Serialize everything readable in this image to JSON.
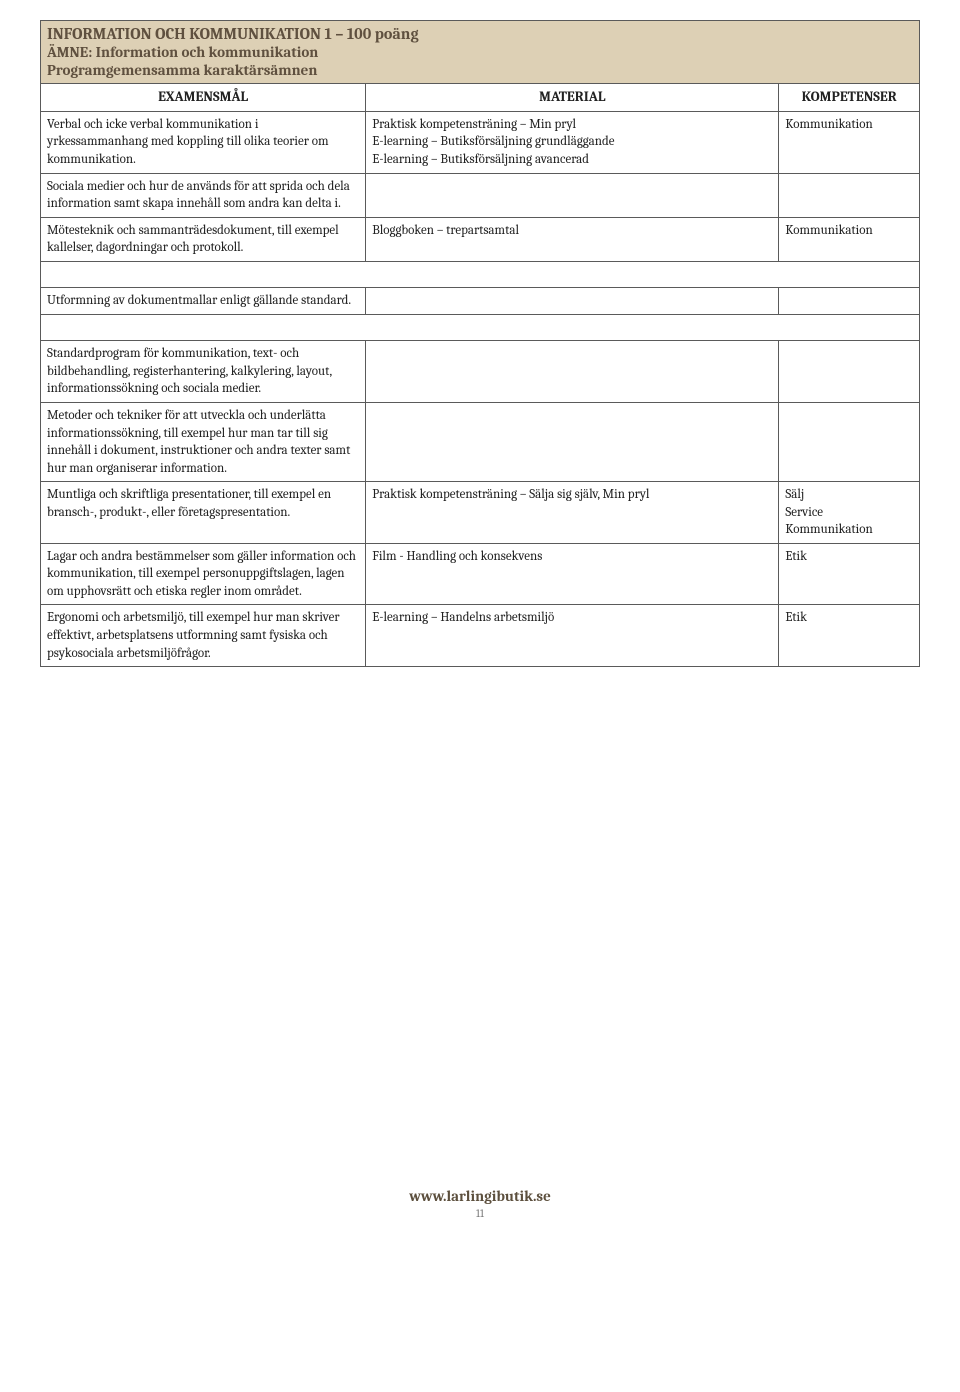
{
  "header": {
    "course_title": "INFORMATION OCH KOMMUNIKATION 1 – 100 poäng",
    "subject_line": "ÄMNE: Information och kommunikation",
    "programme_line": "Programgemensamma karaktärsämnen"
  },
  "table": {
    "columns": [
      "EXAMENSMÅL",
      "MATERIAL",
      "KOMPETENSER"
    ],
    "rows": [
      {
        "goal": "Verbal och icke verbal kommunikation i yrkessammanhang med koppling till olika teorier om kommunikation.",
        "material": "Praktisk kompetensträning – Min pryl\nE-learning – Butiksförsäljning grundläggande\nE-learning – Butiksförsäljning avancerad",
        "competence": "Kommunikation"
      },
      {
        "goal": "Sociala medier och hur de används för att sprida och dela information samt skapa innehåll som andra kan delta i.",
        "material": "",
        "competence": ""
      },
      {
        "goal": "Mötesteknik och sammanträdesdokument, till exempel kallelser, dagordningar och protokoll.",
        "material": "Bloggboken – trepartsamtal",
        "competence": "Kommunikation"
      },
      {
        "goal": "Utformning av dokumentmallar enligt gällande standard.",
        "material": "",
        "competence": ""
      },
      {
        "goal": "Standardprogram för kommunikation, text- och bildbehandling, registerhantering, kalkylering, layout, informationssökning och sociala medier.",
        "material": "",
        "competence": ""
      },
      {
        "goal": "Metoder och tekniker för att utveckla och underlätta informationssökning, till exempel hur man tar till sig innehåll i dokument, instruktioner och andra texter samt hur man organiserar information.",
        "material": "",
        "competence": ""
      },
      {
        "goal": "Muntliga och skriftliga presentationer, till exempel en bransch-, produkt-, eller företagspresentation.",
        "material": "Praktisk kompetensträning – Sälja sig själv, Min pryl",
        "competence": "Sälj\nService\nKommunikation"
      },
      {
        "goal": "Lagar och andra bestämmelser som gäller information och kommunikation, till exempel personuppgiftslagen, lagen om upphovsrätt och etiska regler inom området.",
        "material": "Film - Handling och konsekvens",
        "competence": "Etik"
      },
      {
        "goal": "Ergonomi och arbetsmiljö, till exempel hur man skriver effektivt, arbetsplatsens utformning samt fysiska och psykosociala arbetsmiljöfrågor.",
        "material": "E-learning – Handelns arbetsmiljö",
        "competence": "Etik"
      }
    ]
  },
  "footer": {
    "url": "www.larlingibutik.se",
    "page": "11"
  },
  "style": {
    "header_bg": "#ddd0b5",
    "header_text": "#5f503f",
    "border_color": "#5a5a5a",
    "body_bg": "#ffffff",
    "font_family": "Cambria, Georgia, serif",
    "col_widths_pct": [
      37,
      47,
      16
    ],
    "row_spacers_after": [
      3,
      4
    ]
  }
}
